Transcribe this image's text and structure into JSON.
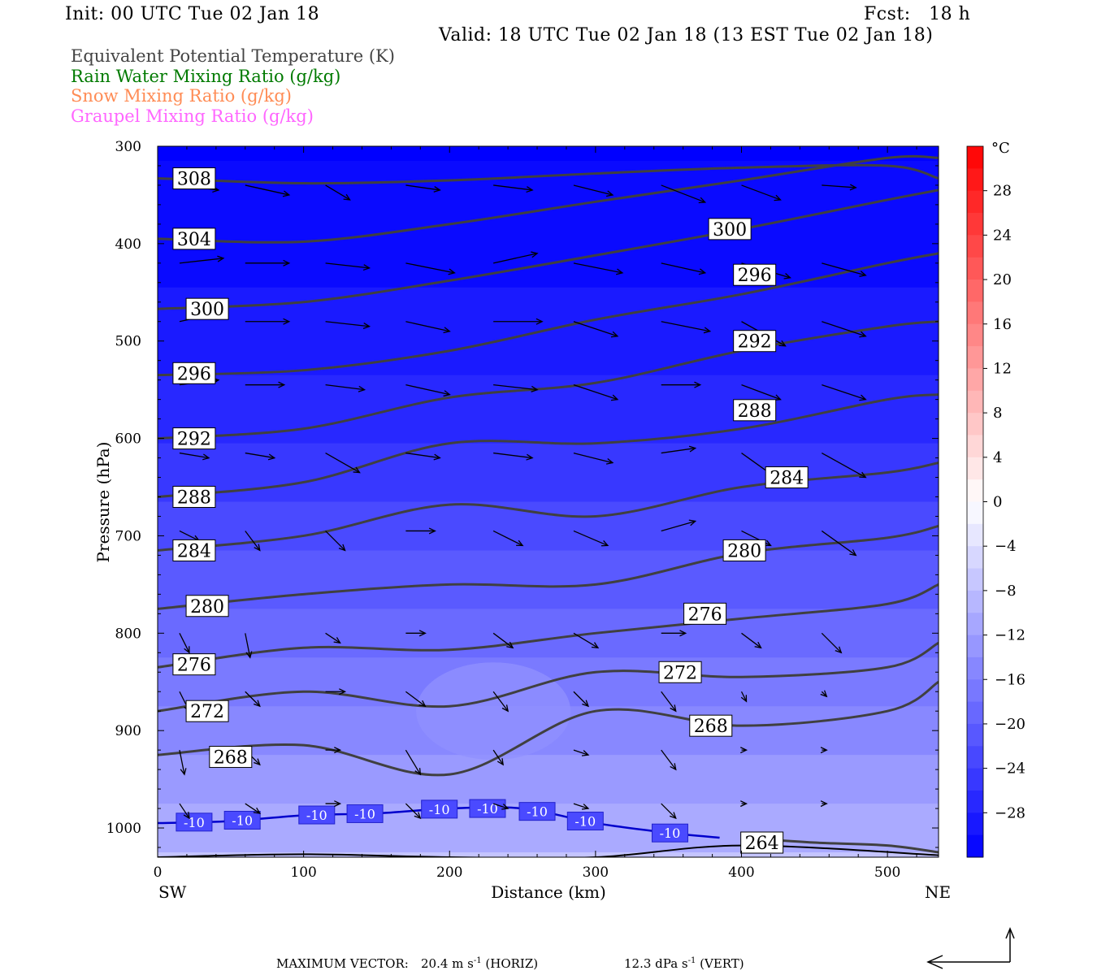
{
  "header": {
    "init": "Init: 00 UTC Tue 02 Jan 18",
    "fcst": "Fcst:   18 h",
    "valid": "Valid: 18 UTC Tue 02 Jan 18 (13 EST Tue 02 Jan 18)"
  },
  "legend": [
    {
      "label": "Equivalent Potential Temperature (K)",
      "color": "#444444"
    },
    {
      "label": "Rain Water Mixing Ratio (g/kg)",
      "color": "#007a00"
    },
    {
      "label": "Snow Mixing Ratio (g/kg)",
      "color": "#ff8c55"
    },
    {
      "label": "Graupel Mixing Ratio (g/kg)",
      "color": "#ff66ff"
    }
  ],
  "chart_data": {
    "type": "heatmap",
    "xlabel": "Distance (km)",
    "ylabel": "Pressure (hPa)",
    "xlim": [
      0,
      535
    ],
    "ylim": [
      1030,
      300
    ],
    "x_ticks": [
      0,
      100,
      200,
      300,
      400,
      500
    ],
    "y_ticks": [
      300,
      400,
      500,
      600,
      700,
      800,
      900,
      1000
    ],
    "x_end_labels": {
      "left": "SW",
      "right": "NE"
    },
    "colorbar": {
      "unit": "°C",
      "ticks": [
        28,
        24,
        20,
        16,
        12,
        8,
        4,
        0,
        -4,
        -8,
        -12,
        -16,
        -20,
        -24,
        -28
      ],
      "range": [
        -32,
        32
      ]
    },
    "theta_e_contours": [
      {
        "level": 308,
        "x": [
          0,
          100,
          200,
          300,
          400,
          500,
          535
        ],
        "p": [
          333,
          338,
          335,
          328,
          322,
          320,
          333
        ]
      },
      {
        "level": 304,
        "x": [
          0,
          100,
          200,
          300,
          400,
          500,
          535
        ],
        "p": [
          395,
          398,
          380,
          357,
          335,
          312,
          312
        ]
      },
      {
        "level": 300,
        "x": [
          0,
          100,
          200,
          300,
          400,
          500,
          535
        ],
        "p": [
          467,
          460,
          438,
          412,
          385,
          355,
          345
        ]
      },
      {
        "level": 296,
        "x": [
          0,
          100,
          200,
          300,
          400,
          500,
          535
        ],
        "p": [
          535,
          530,
          510,
          478,
          452,
          420,
          410
        ]
      },
      {
        "level": 292,
        "x": [
          0,
          100,
          200,
          300,
          400,
          500,
          535
        ],
        "p": [
          600,
          590,
          558,
          543,
          510,
          485,
          480
        ]
      },
      {
        "level": 288,
        "x": [
          0,
          100,
          200,
          300,
          400,
          500,
          535
        ],
        "p": [
          660,
          645,
          605,
          605,
          590,
          560,
          555
        ]
      },
      {
        "level": 284,
        "x": [
          0,
          100,
          200,
          300,
          400,
          500,
          535
        ],
        "p": [
          715,
          700,
          668,
          680,
          650,
          635,
          625
        ]
      },
      {
        "level": 280,
        "x": [
          0,
          100,
          200,
          300,
          400,
          500,
          535
        ],
        "p": [
          775,
          760,
          750,
          750,
          718,
          702,
          690
        ]
      },
      {
        "level": 276,
        "x": [
          0,
          100,
          200,
          300,
          400,
          500,
          535
        ],
        "p": [
          835,
          815,
          817,
          800,
          785,
          770,
          750
        ]
      },
      {
        "level": 272,
        "x": [
          0,
          100,
          200,
          300,
          400,
          500,
          535
        ],
        "p": [
          880,
          860,
          875,
          840,
          845,
          835,
          810
        ]
      },
      {
        "level": 268,
        "x": [
          0,
          100,
          200,
          300,
          400,
          500,
          535
        ],
        "p": [
          925,
          915,
          945,
          880,
          895,
          880,
          850
        ]
      },
      {
        "level": 264,
        "x": [
          400,
          450,
          500,
          535
        ],
        "p": [
          1010,
          1015,
          1018,
          1025
        ]
      }
    ],
    "contour_labels": [
      {
        "text": "308",
        "x": 25,
        "p": 333
      },
      {
        "text": "304",
        "x": 25,
        "p": 395
      },
      {
        "text": "300",
        "x": 34,
        "p": 467
      },
      {
        "text": "296",
        "x": 25,
        "p": 533
      },
      {
        "text": "292",
        "x": 25,
        "p": 600
      },
      {
        "text": "288",
        "x": 25,
        "p": 660
      },
      {
        "text": "284",
        "x": 25,
        "p": 715
      },
      {
        "text": "280",
        "x": 34,
        "p": 772
      },
      {
        "text": "276",
        "x": 25,
        "p": 832
      },
      {
        "text": "272",
        "x": 34,
        "p": 880
      },
      {
        "text": "268",
        "x": 50,
        "p": 927
      },
      {
        "text": "300",
        "x": 392,
        "p": 385
      },
      {
        "text": "296",
        "x": 409,
        "p": 432
      },
      {
        "text": "292",
        "x": 409,
        "p": 500
      },
      {
        "text": "288",
        "x": 409,
        "p": 571
      },
      {
        "text": "284",
        "x": 431,
        "p": 640
      },
      {
        "text": "280",
        "x": 402,
        "p": 715
      },
      {
        "text": "276",
        "x": 375,
        "p": 780
      },
      {
        "text": "272",
        "x": 358,
        "p": 840
      },
      {
        "text": "268",
        "x": 379,
        "p": 895
      },
      {
        "text": "264",
        "x": 414,
        "p": 1015
      }
    ],
    "isotherm_minus10": {
      "label": "-10",
      "x": [
        0,
        50,
        100,
        150,
        200,
        250,
        300,
        350,
        385
      ],
      "p": [
        995,
        993,
        987,
        985,
        980,
        980,
        995,
        1005,
        1010
      ],
      "label_x": [
        25,
        58,
        109,
        142,
        193,
        226,
        260,
        293,
        351
      ]
    },
    "wind_vectors_note": "wind vectors (arrows)",
    "footer": {
      "max_label": "MAXIMUM VECTOR:",
      "horiz": "20.4 m s",
      "horiz_unit": "(HORIZ)",
      "vert": "12.3 dPa s",
      "vert_unit": "(VERT)"
    }
  }
}
